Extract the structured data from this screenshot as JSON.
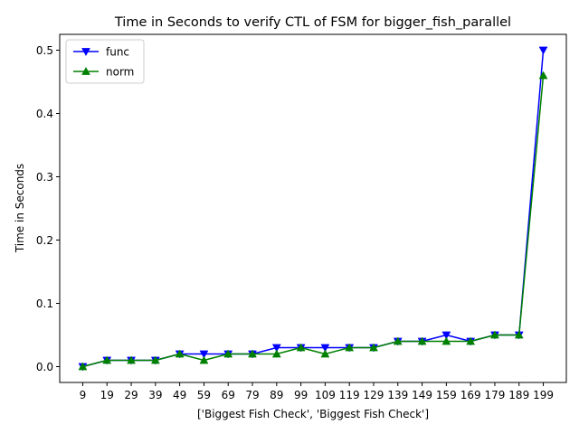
{
  "chart_data": {
    "type": "line",
    "title": "Time in Seconds to verify CTL of FSM for bigger_fish_parallel",
    "xlabel": "['Biggest Fish Check', 'Biggest Fish Check']",
    "ylabel": "Time in Seconds",
    "categories": [
      "9",
      "19",
      "29",
      "39",
      "49",
      "59",
      "69",
      "79",
      "89",
      "99",
      "109",
      "119",
      "129",
      "139",
      "149",
      "159",
      "169",
      "179",
      "189",
      "199"
    ],
    "x": [
      9,
      19,
      29,
      39,
      49,
      59,
      69,
      79,
      89,
      99,
      109,
      119,
      129,
      139,
      149,
      159,
      169,
      179,
      189,
      199
    ],
    "ylim": [
      -0.025,
      0.525
    ],
    "yticks": [
      0.0,
      0.1,
      0.2,
      0.3,
      0.4,
      0.5
    ],
    "ytick_labels": [
      "0.0",
      "0.1",
      "0.2",
      "0.3",
      "0.4",
      "0.5"
    ],
    "grid": false,
    "legend": "top-left",
    "series": [
      {
        "name": "func",
        "color": "#0000ff",
        "marker": "triangle-down",
        "values": [
          0.0,
          0.01,
          0.01,
          0.01,
          0.02,
          0.02,
          0.02,
          0.02,
          0.03,
          0.03,
          0.03,
          0.03,
          0.03,
          0.04,
          0.04,
          0.05,
          0.04,
          0.05,
          0.05,
          0.5
        ]
      },
      {
        "name": "norm",
        "color": "#008000",
        "marker": "triangle-up",
        "values": [
          0.0,
          0.01,
          0.01,
          0.01,
          0.02,
          0.01,
          0.02,
          0.02,
          0.02,
          0.03,
          0.02,
          0.03,
          0.03,
          0.04,
          0.04,
          0.04,
          0.04,
          0.05,
          0.05,
          0.46
        ]
      }
    ]
  }
}
